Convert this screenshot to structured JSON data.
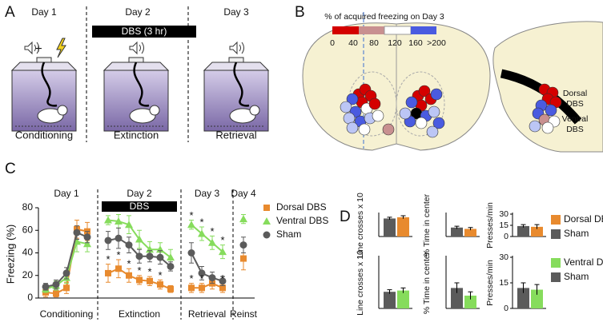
{
  "panels": {
    "A": {
      "label": "A",
      "days": [
        "Day 1",
        "Day 2",
        "Day 3"
      ],
      "plus": "+",
      "dbs": "DBS (3 hr)",
      "phases": [
        "Conditioning",
        "Extinction",
        "Retrieval"
      ]
    },
    "B": {
      "label": "B",
      "legend_title": "% of acquired freezing on Day 3",
      "scale_ticks": [
        0,
        40,
        80,
        120,
        160,
        {
          "value": 200,
          "label": ">200"
        }
      ],
      "regions": [
        [
          "Dorsal",
          "DBS"
        ],
        [
          "Ventral",
          "DBS"
        ]
      ]
    },
    "C": {
      "label": "C"
    },
    "D": {
      "label": "D"
    }
  },
  "chart_data": [
    {
      "type": "line",
      "ylabel": "Freezing (%)",
      "ylim": [
        0,
        80
      ],
      "yticks": [
        0,
        20,
        40,
        60,
        80
      ],
      "categories": [
        null,
        null,
        null,
        null,
        null,
        null,
        null,
        null,
        null,
        null,
        null,
        null,
        null,
        null,
        null,
        null,
        null,
        null,
        null,
        null
      ],
      "groups": [
        "Conditioning",
        "Extinction",
        "Retrieval",
        "Reinst"
      ],
      "days": [
        "Day 1",
        "Day 2",
        "Day 3",
        "Day 4"
      ],
      "band_label": "DBS",
      "legend": "upper right",
      "series": [
        {
          "name": "Dorsal DBS",
          "color": "#e88a2e",
          "marker": "square",
          "values": [
            5,
            4,
            9,
            61,
            59,
            null,
            22,
            26,
            20,
            16,
            15,
            12,
            8,
            null,
            9,
            9,
            13,
            9,
            null,
            35
          ],
          "errors": [
            4,
            3,
            5,
            8,
            8,
            null,
            8,
            8,
            6,
            4,
            4,
            4,
            3,
            null,
            4,
            4,
            5,
            4,
            null,
            10
          ]
        },
        {
          "name": "Ventral DBS",
          "color": "#86dc5c",
          "marker": "triangle",
          "values": [
            8,
            11,
            18,
            50,
            48,
            null,
            69,
            68,
            65,
            52,
            43,
            43,
            36,
            null,
            65,
            57,
            49,
            41,
            null,
            70
          ],
          "errors": [
            3,
            4,
            5,
            9,
            7,
            null,
            4,
            6,
            8,
            8,
            7,
            6,
            7,
            null,
            4,
            6,
            6,
            6,
            null,
            4
          ]
        },
        {
          "name": "Sham",
          "color": "#5b5b5b",
          "marker": "circle",
          "values": [
            10,
            12,
            22,
            58,
            54,
            null,
            51,
            53,
            47,
            37,
            37,
            36,
            28,
            null,
            40,
            22,
            18,
            15,
            null,
            47
          ],
          "errors": [
            3,
            4,
            5,
            6,
            5,
            null,
            8,
            9,
            7,
            6,
            5,
            6,
            4,
            null,
            9,
            6,
            5,
            4,
            null,
            7
          ]
        }
      ],
      "annotations": [
        {
          "text": "*",
          "series": 0,
          "index": 6
        },
        {
          "text": "*",
          "series": 0,
          "index": 7
        },
        {
          "text": "*",
          "series": 0,
          "index": 8
        },
        {
          "text": "*",
          "series": 0,
          "index": 9
        },
        {
          "text": "*",
          "series": 0,
          "index": 10
        },
        {
          "text": "*",
          "series": 0,
          "index": 11
        },
        {
          "text": "*",
          "series": 0,
          "index": 14
        },
        {
          "text": "*",
          "series": 0,
          "index": 15
        },
        {
          "text": "*",
          "series": 0,
          "index": 17
        },
        {
          "text": "*",
          "series": 1,
          "index": 14
        },
        {
          "text": "*",
          "series": 1,
          "index": 15
        },
        {
          "text": "*",
          "series": 1,
          "index": 16
        },
        {
          "text": "*",
          "series": 1,
          "index": 17
        }
      ]
    },
    {
      "type": "bar",
      "ylabel": "Line crosses x 10",
      "ylim": [
        0,
        18
      ],
      "values": [
        14.5,
        15.5
      ],
      "errors": [
        1,
        1.2
      ],
      "colors": [
        "#5b5b5b",
        "#e88a2e"
      ]
    },
    {
      "type": "bar",
      "ylabel": "% Time in center",
      "ylim": [
        0,
        50
      ],
      "values": [
        20,
        17
      ],
      "errors": [
        3,
        3
      ],
      "colors": [
        "#5b5b5b",
        "#e88a2e"
      ]
    },
    {
      "type": "bar",
      "ylabel": "Presses/min",
      "ylim": [
        0,
        30
      ],
      "yticks": [
        0,
        15,
        30
      ],
      "legend": "upper right",
      "series": [
        {
          "name": "Sham",
          "color": "#5b5b5b",
          "values": [
            14
          ],
          "errors": [
            2
          ]
        },
        {
          "name": "Dorsal DBS",
          "color": "#e88a2e",
          "values": [
            13
          ],
          "errors": [
            3
          ]
        }
      ]
    },
    {
      "type": "bar",
      "ylabel": "Line crosses x 10",
      "ylim": [
        0,
        20
      ],
      "values": [
        6.5,
        7
      ],
      "errors": [
        0.8,
        1
      ],
      "colors": [
        "#5b5b5b",
        "#86dc5c"
      ]
    },
    {
      "type": "bar",
      "ylabel": "% Time in center",
      "ylim": [
        0,
        20
      ],
      "values": [
        8,
        5
      ],
      "errors": [
        2,
        1.5
      ],
      "colors": [
        "#5b5b5b",
        "#86dc5c"
      ]
    },
    {
      "type": "bar",
      "ylabel": "Presses/min",
      "ylim": [
        0,
        30
      ],
      "yticks": [
        0,
        15,
        30
      ],
      "legend": "upper right",
      "series": [
        {
          "name": "Sham",
          "color": "#5b5b5b",
          "values": [
            12
          ],
          "errors": [
            3
          ]
        },
        {
          "name": "Ventral DBS",
          "color": "#86dc5c",
          "values": [
            11
          ],
          "errors": [
            3
          ]
        }
      ]
    }
  ]
}
